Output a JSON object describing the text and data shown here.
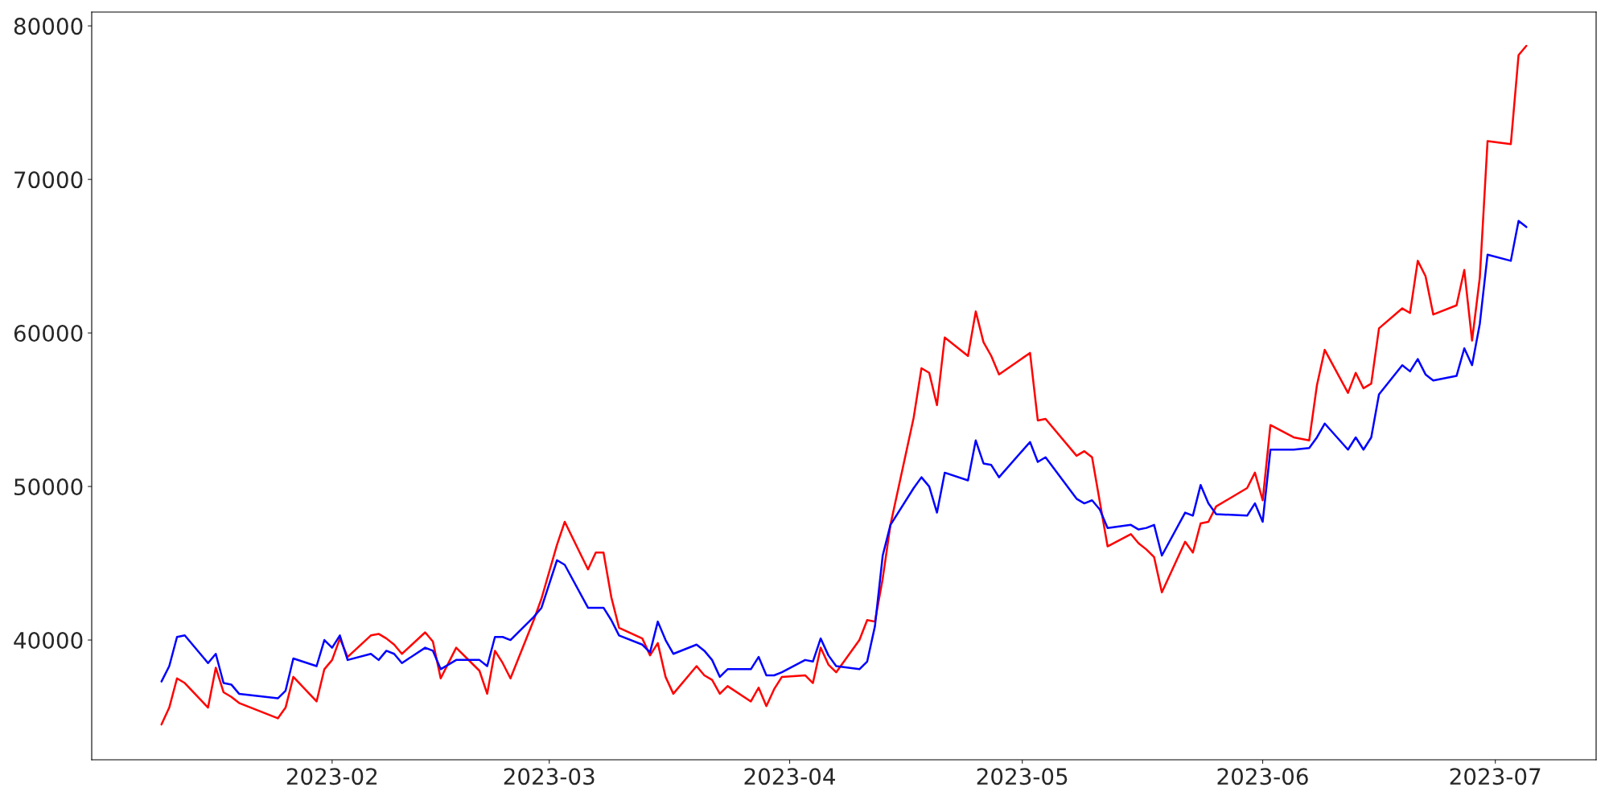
{
  "chart_data": {
    "type": "line",
    "x": [
      "2023-01-10",
      "2023-01-11",
      "2023-01-12",
      "2023-01-13",
      "2023-01-16",
      "2023-01-17",
      "2023-01-18",
      "2023-01-19",
      "2023-01-20",
      "2023-01-25",
      "2023-01-26",
      "2023-01-27",
      "2023-01-30",
      "2023-01-31",
      "2023-02-01",
      "2023-02-02",
      "2023-02-03",
      "2023-02-06",
      "2023-02-07",
      "2023-02-08",
      "2023-02-09",
      "2023-02-10",
      "2023-02-13",
      "2023-02-14",
      "2023-02-15",
      "2023-02-17",
      "2023-02-20",
      "2023-02-21",
      "2023-02-22",
      "2023-02-23",
      "2023-02-24",
      "2023-02-27",
      "2023-02-28",
      "2023-03-02",
      "2023-03-03",
      "2023-03-06",
      "2023-03-07",
      "2023-03-08",
      "2023-03-09",
      "2023-03-10",
      "2023-03-13",
      "2023-03-14",
      "2023-03-15",
      "2023-03-16",
      "2023-03-17",
      "2023-03-20",
      "2023-03-21",
      "2023-03-22",
      "2023-03-23",
      "2023-03-24",
      "2023-03-27",
      "2023-03-28",
      "2023-03-29",
      "2023-03-30",
      "2023-03-31",
      "2023-04-03",
      "2023-04-04",
      "2023-04-05",
      "2023-04-06",
      "2023-04-07",
      "2023-04-10",
      "2023-04-11",
      "2023-04-12",
      "2023-04-13",
      "2023-04-14",
      "2023-04-17",
      "2023-04-18",
      "2023-04-19",
      "2023-04-20",
      "2023-04-21",
      "2023-04-24",
      "2023-04-25",
      "2023-04-26",
      "2023-04-27",
      "2023-04-28",
      "2023-05-02",
      "2023-05-03",
      "2023-05-04",
      "2023-05-08",
      "2023-05-09",
      "2023-05-10",
      "2023-05-11",
      "2023-05-12",
      "2023-05-15",
      "2023-05-16",
      "2023-05-17",
      "2023-05-18",
      "2023-05-19",
      "2023-05-22",
      "2023-05-23",
      "2023-05-24",
      "2023-05-25",
      "2023-05-26",
      "2023-05-30",
      "2023-05-31",
      "2023-06-01",
      "2023-06-02",
      "2023-06-05",
      "2023-06-07",
      "2023-06-08",
      "2023-06-09",
      "2023-06-12",
      "2023-06-13",
      "2023-06-14",
      "2023-06-15",
      "2023-06-16",
      "2023-06-19",
      "2023-06-20",
      "2023-06-21",
      "2023-06-22",
      "2023-06-23",
      "2023-06-26",
      "2023-06-27",
      "2023-06-28",
      "2023-06-29",
      "2023-06-30",
      "2023-07-03",
      "2023-07-04",
      "2023-07-05"
    ],
    "series": [
      {
        "color": "#ff0000",
        "values": [
          34500,
          35600,
          37500,
          37200,
          35600,
          38200,
          36600,
          36300,
          35900,
          34900,
          35600,
          37600,
          36000,
          38100,
          38700,
          40100,
          38900,
          40300,
          40400,
          40100,
          39700,
          39100,
          40500,
          39900,
          37500,
          39500,
          38000,
          36500,
          39300,
          38500,
          37500,
          41300,
          42700,
          46200,
          47700,
          44600,
          45700,
          45700,
          42800,
          40800,
          40100,
          39000,
          39800,
          37600,
          36500,
          38300,
          37700,
          37400,
          36500,
          37000,
          36000,
          36900,
          35700,
          36800,
          37600,
          37700,
          37200,
          39500,
          38400,
          37900,
          40000,
          41300,
          41200,
          44000,
          47500,
          54500,
          57700,
          57400,
          55300,
          59700,
          58500,
          61400,
          59400,
          58500,
          57300,
          58700,
          54300,
          54400,
          52000,
          52300,
          51900,
          49000,
          46100,
          46900,
          46300,
          45900,
          45400,
          43100,
          46400,
          45700,
          47600,
          47700,
          48700,
          49900,
          50900,
          49100,
          54000,
          53200,
          53000,
          56600,
          58900,
          56100,
          57400,
          56400,
          56700,
          60300,
          61600,
          61300,
          64700,
          63700,
          61200,
          61800,
          64100,
          59500,
          63600,
          72500,
          72300,
          78100,
          78700
        ]
      },
      {
        "color": "#0000ff",
        "values": [
          37300,
          38300,
          40200,
          40300,
          38500,
          39100,
          37200,
          37100,
          36500,
          36200,
          36700,
          38800,
          38300,
          40000,
          39500,
          40300,
          38700,
          39100,
          38700,
          39300,
          39100,
          38500,
          39500,
          39300,
          38100,
          38700,
          38700,
          38300,
          40200,
          40200,
          40000,
          41500,
          42100,
          45200,
          44900,
          42100,
          42100,
          42100,
          41300,
          40300,
          39700,
          39200,
          41200,
          40000,
          39100,
          39700,
          39300,
          38700,
          37600,
          38100,
          38100,
          38900,
          37700,
          37700,
          37900,
          38700,
          38600,
          40100,
          39000,
          38300,
          38100,
          38600,
          40900,
          45500,
          47500,
          49900,
          50600,
          50000,
          48300,
          50900,
          50400,
          53000,
          51500,
          51400,
          50600,
          52900,
          51600,
          51900,
          49200,
          48900,
          49100,
          48500,
          47300,
          47500,
          47200,
          47300,
          47500,
          45500,
          48300,
          48100,
          50100,
          48900,
          48200,
          48100,
          48900,
          47700,
          52400,
          52400,
          52500,
          53200,
          54100,
          52400,
          53200,
          52400,
          53200,
          56000,
          57900,
          57500,
          58300,
          57300,
          56900,
          57200,
          59000,
          57900,
          60600,
          65100,
          64700,
          67300,
          66900
        ]
      }
    ],
    "xlim": [
      "2023-01-01",
      "2023-07-14"
    ],
    "ylim": [
      32200,
      80900
    ],
    "xticks": [
      {
        "value": "2023-02-01",
        "label": "2023-02"
      },
      {
        "value": "2023-03-01",
        "label": "2023-03"
      },
      {
        "value": "2023-04-01",
        "label": "2023-04"
      },
      {
        "value": "2023-05-01",
        "label": "2023-05"
      },
      {
        "value": "2023-06-01",
        "label": "2023-06"
      },
      {
        "value": "2023-07-01",
        "label": "2023-07"
      }
    ],
    "yticks": [
      40000,
      50000,
      60000,
      70000,
      80000
    ]
  }
}
